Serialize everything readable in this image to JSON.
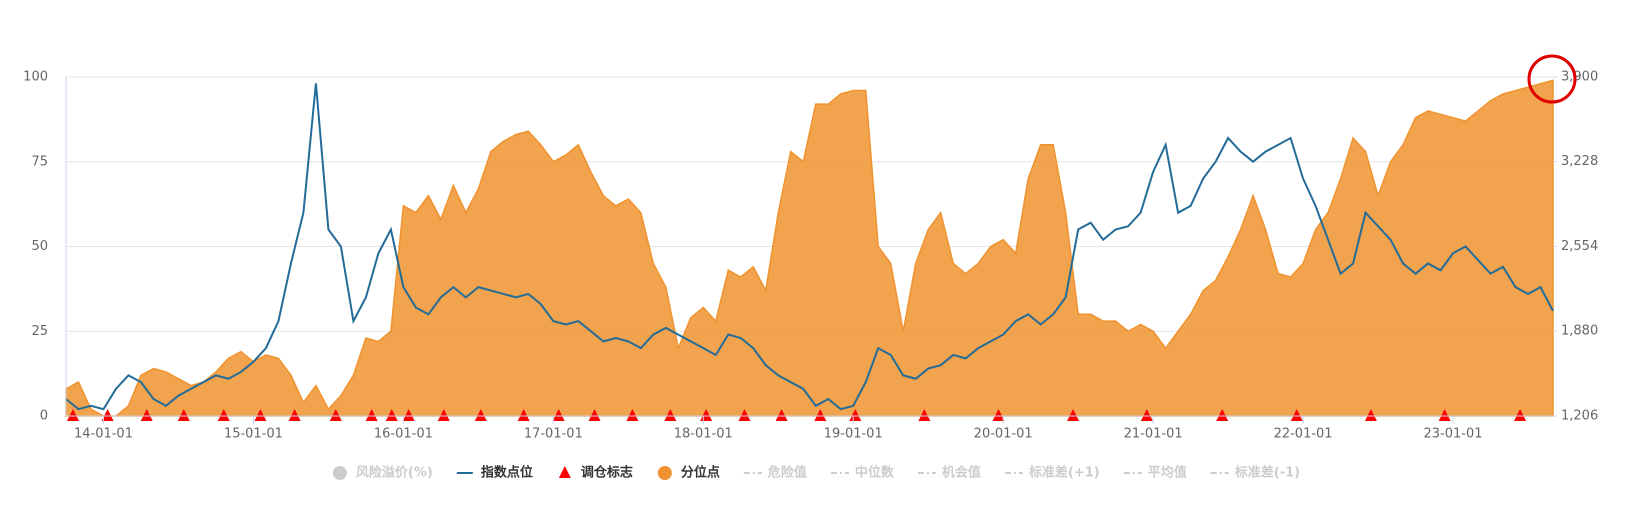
{
  "chart_data": {
    "type": "area-line",
    "x": [
      "13-10-01",
      "13-11-01",
      "13-12-01",
      "14-01-01",
      "14-02-01",
      "14-03-01",
      "14-04-01",
      "14-05-01",
      "14-06-01",
      "14-07-01",
      "14-08-01",
      "14-09-01",
      "14-10-01",
      "14-11-01",
      "14-12-01",
      "15-01-01",
      "15-02-01",
      "15-03-01",
      "15-04-01",
      "15-05-01",
      "15-06-01",
      "15-07-01",
      "15-08-01",
      "15-09-01",
      "15-10-01",
      "15-11-01",
      "15-12-01",
      "16-01-01",
      "16-02-01",
      "16-03-01",
      "16-04-01",
      "16-05-01",
      "16-06-01",
      "16-07-01",
      "16-08-01",
      "16-09-01",
      "16-10-01",
      "16-11-01",
      "16-12-01",
      "17-01-01",
      "17-02-01",
      "17-03-01",
      "17-04-01",
      "17-05-01",
      "17-06-01",
      "17-07-01",
      "17-08-01",
      "17-09-01",
      "17-10-01",
      "17-11-01",
      "17-12-01",
      "18-01-01",
      "18-02-01",
      "18-03-01",
      "18-04-01",
      "18-05-01",
      "18-06-01",
      "18-07-01",
      "18-08-01",
      "18-09-01",
      "18-10-01",
      "18-11-01",
      "18-12-01",
      "19-01-01",
      "19-02-01",
      "19-03-01",
      "19-04-01",
      "19-05-01",
      "19-06-01",
      "19-07-01",
      "19-08-01",
      "19-09-01",
      "19-10-01",
      "19-11-01",
      "19-12-01",
      "20-01-01",
      "20-02-01",
      "20-03-01",
      "20-04-01",
      "20-05-01",
      "20-06-01",
      "20-07-01",
      "20-08-01",
      "20-09-01",
      "20-10-01",
      "20-11-01",
      "20-12-01",
      "21-01-01",
      "21-02-01",
      "21-03-01",
      "21-04-01",
      "21-05-01",
      "21-06-01",
      "21-07-01",
      "21-08-01",
      "21-09-01",
      "21-10-01",
      "21-11-01",
      "21-12-01",
      "22-01-01",
      "22-02-01",
      "22-03-01",
      "22-04-01",
      "22-05-01",
      "22-06-01",
      "22-07-01",
      "22-08-01",
      "22-09-01",
      "22-10-01",
      "22-11-01",
      "22-12-01",
      "23-01-01",
      "23-02-01",
      "23-03-01",
      "23-04-01",
      "23-05-01",
      "23-06-01",
      "23-07-01",
      "23-08-01",
      "23-09-01"
    ],
    "xlim": [
      "13-10-01",
      "23-09-01"
    ],
    "xticks": [
      "14-01-01",
      "15-01-01",
      "16-01-01",
      "17-01-01",
      "18-01-01",
      "19-01-01",
      "20-01-01",
      "21-01-01",
      "22-01-01",
      "23-01-01"
    ],
    "ylim": [
      0,
      100
    ],
    "yticks": [
      0,
      25,
      50,
      75,
      100
    ],
    "y2lim": [
      1206,
      3900
    ],
    "y2ticks": [
      {
        "value": 1206,
        "label": "1,206"
      },
      {
        "value": 1880,
        "label": "1,880"
      },
      {
        "value": 2554,
        "label": "2,554"
      },
      {
        "value": 3228,
        "label": "3,228"
      },
      {
        "value": 3900,
        "label": "3,900"
      }
    ],
    "grid": true,
    "series": [
      {
        "name": "风险溢价(%)",
        "marker": "circle",
        "visible": false
      },
      {
        "name": "指数点位",
        "marker": "line",
        "color": "#236c98",
        "axis": "y2",
        "visible": true,
        "values": [
          1341,
          1260,
          1287,
          1260,
          1422,
          1529,
          1475,
          1341,
          1287,
          1368,
          1422,
          1475,
          1529,
          1502,
          1556,
          1637,
          1745,
          1960,
          2418,
          2822,
          3850,
          2688,
          2553,
          1960,
          2149,
          2499,
          2688,
          2230,
          2068,
          2014,
          2149,
          2230,
          2149,
          2230,
          2203,
          2176,
          2149,
          2176,
          2095,
          1960,
          1933,
          1960,
          1880,
          1799,
          1826,
          1799,
          1745,
          1853,
          1906,
          1853,
          1799,
          1745,
          1691,
          1853,
          1826,
          1745,
          1610,
          1529,
          1475,
          1422,
          1287,
          1341,
          1260,
          1287,
          1475,
          1745,
          1691,
          1529,
          1502,
          1583,
          1610,
          1691,
          1664,
          1745,
          1799,
          1853,
          1960,
          2014,
          1933,
          2014,
          2149,
          2688,
          2742,
          2607,
          2688,
          2714,
          2822,
          3146,
          3361,
          2822,
          2876,
          3092,
          3227,
          3415,
          3307,
          3227,
          3307,
          3361,
          3415,
          3092,
          2876,
          2607,
          2337,
          2418,
          2822,
          2714,
          2607,
          2418,
          2337,
          2418,
          2364,
          2499,
          2553,
          2445,
          2337,
          2391,
          2230,
          2176,
          2230,
          2041
        ]
      },
      {
        "name": "调仓标志",
        "marker": "triangle",
        "color": "#ff0000",
        "visible": true,
        "x": [
          "13-10-18",
          "14-01-11",
          "14-04-15",
          "14-07-14",
          "14-10-20",
          "15-01-18",
          "15-04-10",
          "15-07-19",
          "15-10-15",
          "15-12-03",
          "16-01-14",
          "16-04-08",
          "16-07-07",
          "16-10-20",
          "17-01-14",
          "17-04-10",
          "17-07-11",
          "17-10-12",
          "18-01-08",
          "18-04-10",
          "18-07-09",
          "18-10-12",
          "19-01-06",
          "19-06-22",
          "19-12-20",
          "20-06-19",
          "20-12-16",
          "21-06-17",
          "21-12-16",
          "22-06-14",
          "22-12-11",
          "23-06-12"
        ],
        "values": [
          0,
          0,
          0,
          0,
          0,
          0,
          0,
          0,
          0,
          0,
          0,
          0,
          0,
          0,
          0,
          0,
          0,
          0,
          0,
          0,
          0,
          0,
          0,
          0,
          0,
          0,
          0,
          0,
          0,
          0,
          0,
          0
        ]
      },
      {
        "name": "分位点",
        "marker": "area",
        "color": "#f0932f",
        "visible": true,
        "values": [
          8,
          10,
          2,
          0,
          0,
          3,
          12,
          14,
          13,
          11,
          9,
          10,
          13,
          17,
          19,
          16,
          18,
          17,
          12,
          4,
          9,
          2,
          6,
          12,
          23,
          22,
          25,
          62,
          60,
          65,
          58,
          68,
          60,
          67,
          78,
          81,
          83,
          84,
          80,
          75,
          77,
          80,
          72,
          65,
          62,
          64,
          60,
          45,
          38,
          20,
          29,
          32,
          28,
          43,
          41,
          44,
          37,
          60,
          78,
          75,
          92,
          92,
          95,
          96,
          96,
          50,
          45,
          25,
          45,
          55,
          60,
          45,
          42,
          45,
          50,
          52,
          48,
          70,
          80,
          80,
          60,
          30,
          30,
          28,
          28,
          25,
          27,
          25,
          20,
          25,
          30,
          37,
          40,
          47,
          55,
          65,
          55,
          42,
          41,
          45,
          55,
          60,
          70,
          82,
          78,
          65,
          75,
          80,
          88,
          90,
          89,
          88,
          87,
          90,
          93,
          95,
          96,
          97,
          98,
          99
        ]
      },
      {
        "name": "危险值",
        "marker": "dash",
        "visible": false
      },
      {
        "name": "中位数",
        "marker": "dash",
        "visible": false
      },
      {
        "name": "机会值",
        "marker": "dash",
        "visible": false
      },
      {
        "name": "标准差(+1)",
        "marker": "dash",
        "visible": false
      },
      {
        "name": "平均值",
        "marker": "dash",
        "visible": false
      },
      {
        "name": "标准差(-1)",
        "marker": "dash",
        "visible": false
      }
    ]
  }
}
